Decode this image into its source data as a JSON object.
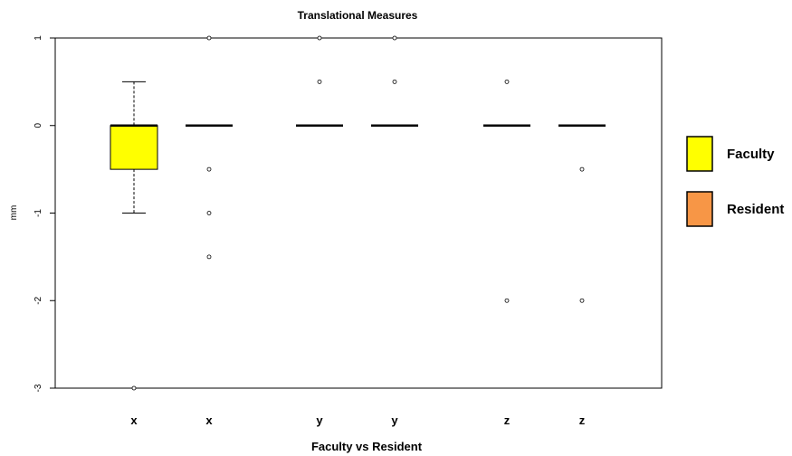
{
  "chart_data": {
    "type": "box",
    "title": "Translational Measures",
    "xlabel": "Faculty  vs Resident",
    "ylabel": "mm",
    "ylim": [
      -3,
      1
    ],
    "yticks": [
      1,
      0,
      -1,
      -2,
      -3
    ],
    "ytick_labels": [
      "1",
      "0",
      "-1",
      "-2",
      "-3"
    ],
    "grid": false,
    "legend": {
      "position": "right",
      "entries": [
        {
          "name": "Faculty",
          "color": "#ffff00"
        },
        {
          "name": "Resident",
          "color": "#f79646"
        }
      ]
    },
    "boxes": [
      {
        "label": "x",
        "group": "Faculty",
        "color": "#ffff00",
        "min": -1.0,
        "q1": -0.5,
        "median": 0,
        "q3": 0,
        "max": 0.5,
        "outliers": [
          -3
        ]
      },
      {
        "label": "x",
        "group": "Resident",
        "color": "#f79646",
        "min": 0,
        "q1": 0,
        "median": 0,
        "q3": 0,
        "max": 0,
        "outliers": [
          1,
          -0.5,
          -1.0,
          -1.5
        ]
      },
      {
        "label": "y",
        "group": "Faculty",
        "color": "#ffff00",
        "min": 0,
        "q1": 0,
        "median": 0,
        "q3": 0,
        "max": 0,
        "outliers": [
          1,
          0.5
        ]
      },
      {
        "label": "y",
        "group": "Resident",
        "color": "#f79646",
        "min": 0,
        "q1": 0,
        "median": 0,
        "q3": 0,
        "max": 0,
        "outliers": [
          1,
          0.5
        ]
      },
      {
        "label": "z",
        "group": "Faculty",
        "color": "#ffff00",
        "min": 0,
        "q1": 0,
        "median": 0,
        "q3": 0,
        "max": 0,
        "outliers": [
          0.5,
          -2.0
        ]
      },
      {
        "label": "z",
        "group": "Resident",
        "color": "#f79646",
        "min": 0,
        "q1": 0,
        "median": 0,
        "q3": 0,
        "max": 0,
        "outliers": [
          -0.5,
          -2.0
        ]
      }
    ]
  }
}
